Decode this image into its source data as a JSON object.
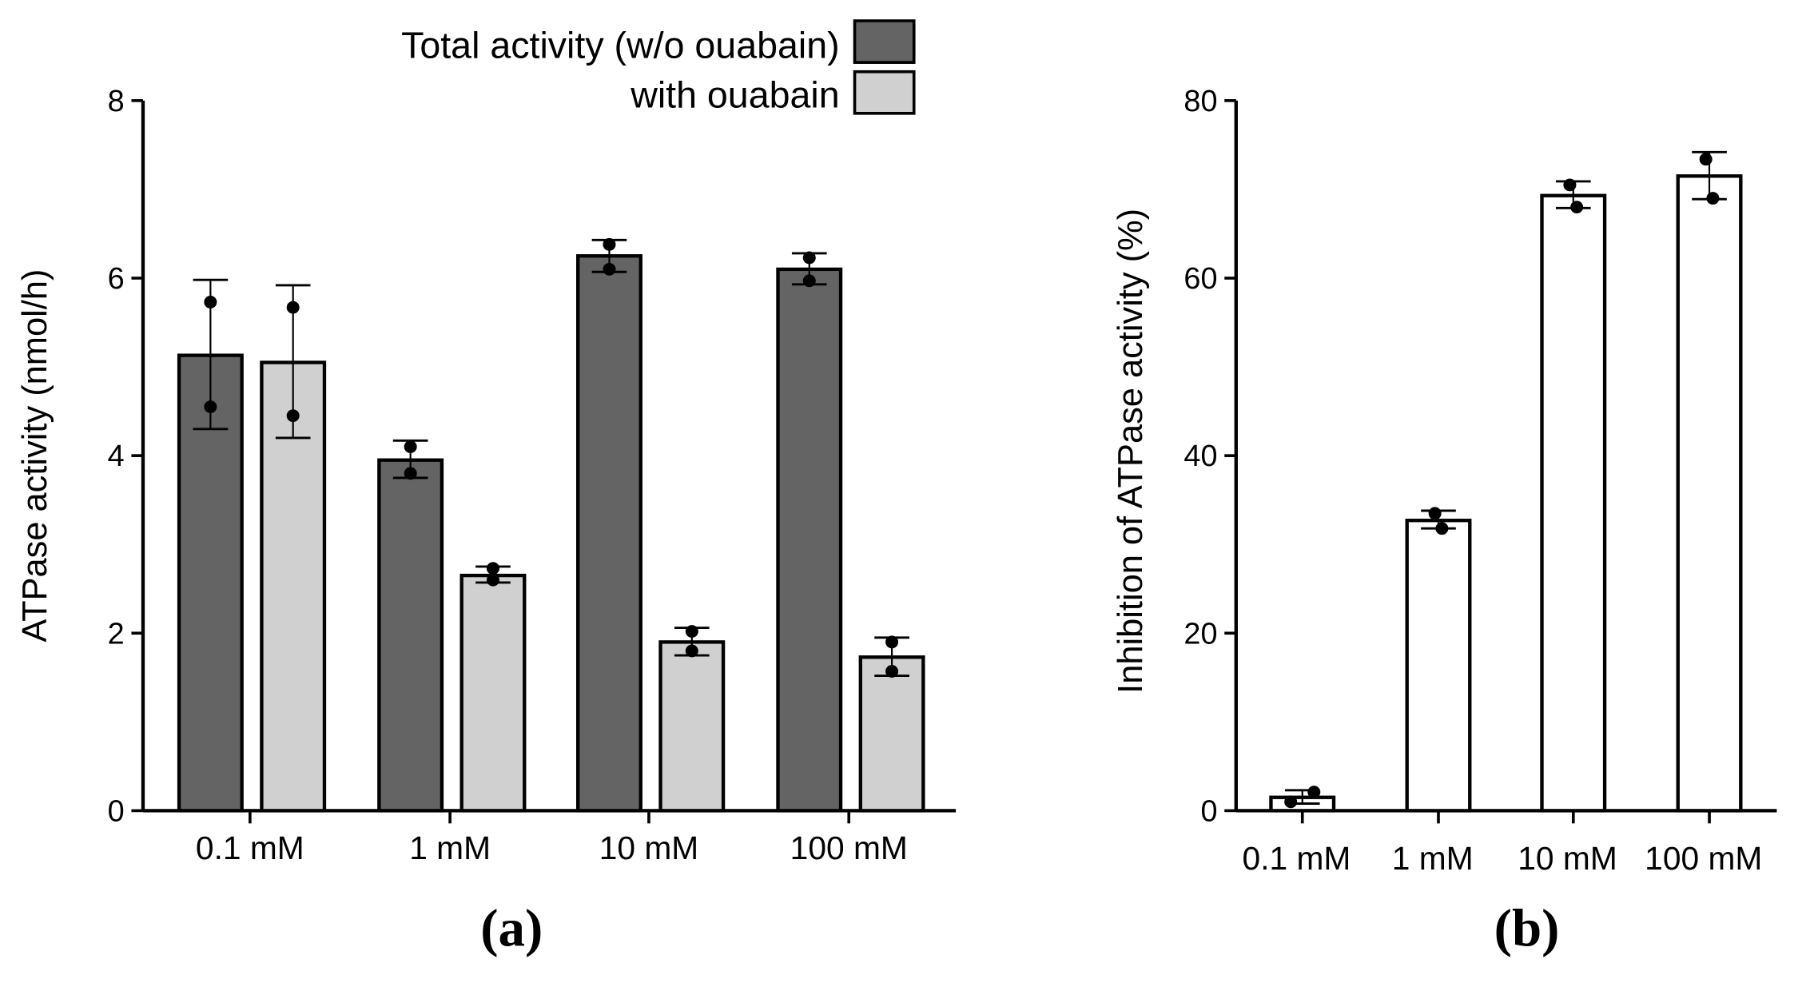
{
  "chart_data": [
    {
      "type": "bar",
      "panel_label": "(a)",
      "categories": [
        "0.1 mM",
        "1 mM",
        "10 mM",
        "100 mM"
      ],
      "ylabel": "ATPase activity (nmol/h)",
      "xlabel": "",
      "ylim": [
        0,
        8
      ],
      "yticks": [
        0,
        2,
        4,
        6,
        8
      ],
      "legend_position": "top-right",
      "series": [
        {
          "name": "Total activity (w/o ouabain)",
          "color": "#646464",
          "values": [
            5.13,
            3.95,
            6.25,
            6.1
          ],
          "err_low": [
            4.3,
            3.75,
            6.07,
            5.93
          ],
          "err_high": [
            5.98,
            4.17,
            6.43,
            6.28
          ],
          "points": [
            [
              5.73,
              4.55
            ],
            [
              4.1,
              3.8
            ],
            [
              6.38,
              6.1
            ],
            [
              6.23,
              5.97
            ]
          ]
        },
        {
          "name": "with ouabain",
          "color": "#d0d0d0",
          "values": [
            5.05,
            2.65,
            1.9,
            1.73
          ],
          "err_low": [
            4.2,
            2.57,
            1.75,
            1.52
          ],
          "err_high": [
            5.92,
            2.75,
            2.06,
            1.95
          ],
          "points": [
            [
              5.67,
              4.45
            ],
            [
              2.73,
              2.6
            ],
            [
              2.02,
              1.8
            ],
            [
              1.9,
              1.57
            ]
          ]
        }
      ]
    },
    {
      "type": "bar",
      "panel_label": "(b)",
      "categories": [
        "0.1 mM",
        "1 mM",
        "10 mM",
        "100 mM"
      ],
      "ylabel": "Inhibition of ATPase activity (%)",
      "xlabel": "",
      "ylim": [
        0,
        80
      ],
      "yticks": [
        0,
        20,
        40,
        60,
        80
      ],
      "series": [
        {
          "name": "Inhibition",
          "color": "#ffffff",
          "values": [
            1.5,
            32.7,
            69.3,
            71.5
          ],
          "err_low": [
            0.8,
            31.8,
            67.9,
            68.9
          ],
          "err_high": [
            2.3,
            33.8,
            70.9,
            74.2
          ],
          "points": [
            [
              1.0,
              2.1
            ],
            [
              33.5,
              31.8
            ],
            [
              70.5,
              68.0
            ],
            [
              73.4,
              69.0
            ]
          ]
        }
      ]
    }
  ]
}
